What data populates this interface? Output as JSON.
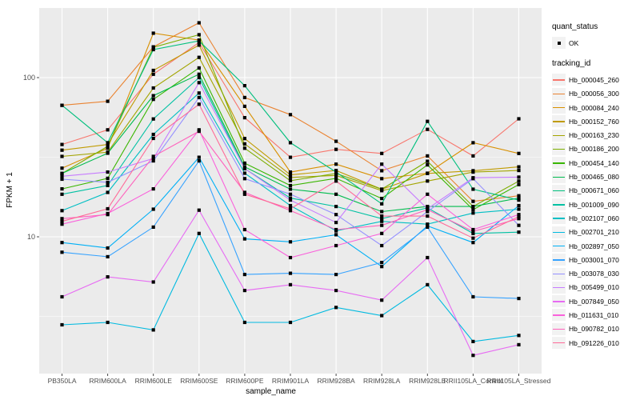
{
  "chart_data": {
    "type": "line",
    "title": "",
    "xlabel": "sample_name",
    "ylabel": "FPKM + 1",
    "y_scale": "log10",
    "ylim": [
      1.4,
      270
    ],
    "y_ticks": [
      10,
      100
    ],
    "y_tick_labels": [
      "10",
      "100"
    ],
    "y_minor_ticks": [
      3.162,
      31.62
    ],
    "grid": "on",
    "panel_background": "#EBEBEB",
    "gridline_color": "#FFFFFF",
    "point_marker": "black-square",
    "legend_position": "right",
    "categories": [
      "PB350LA",
      "RRIM600LA",
      "RRIM600LE",
      "RRIM600SE",
      "RRIM600PE",
      "RRIM901LA",
      "RRIM928BA",
      "RRIM928LA",
      "RRIM928LE",
      "RRII105LA_Control",
      "RRII105LA_Stressed"
    ],
    "series": [
      {
        "name": "Hb_000045_260",
        "color": "#F8766D",
        "values": [
          38,
          47,
          105,
          166,
          56,
          31.6,
          35.4,
          33.4,
          47.3,
          32.2,
          55.1
        ]
      },
      {
        "name": "Hb_000056_300",
        "color": "#EA8331",
        "values": [
          67,
          71,
          156,
          221,
          75,
          58.5,
          39.8,
          26,
          32.2,
          16.7,
          18.1
        ]
      },
      {
        "name": "Hb_000084_240",
        "color": "#D89000",
        "values": [
          27,
          36,
          190,
          172,
          66,
          25.5,
          28.6,
          23.2,
          25.1,
          39,
          33.4
        ]
      },
      {
        "name": "Hb_000152_760",
        "color": "#C09B00",
        "values": [
          35,
          38,
          111,
          160,
          41.4,
          24.5,
          26.1,
          19.9,
          25,
          26,
          27.5
        ]
      },
      {
        "name": "Hb_000163_230",
        "color": "#A3A500",
        "values": [
          32,
          34,
          86,
          134,
          38.3,
          23.6,
          24.3,
          19.5,
          22.4,
          25.5,
          26.1
        ]
      },
      {
        "name": "Hb_000186_200",
        "color": "#7CAE00",
        "values": [
          25,
          37,
          155,
          186,
          36,
          22.5,
          25,
          19.9,
          29.8,
          15.5,
          22.4
        ]
      },
      {
        "name": "Hb_000454_140",
        "color": "#39B600",
        "values": [
          20,
          23.3,
          73,
          115,
          29,
          21,
          23.3,
          17.4,
          28.3,
          14.8,
          21.3
        ]
      },
      {
        "name": "Hb_000465_080",
        "color": "#00BB4E",
        "values": [
          25,
          33.5,
          77,
          105,
          27.5,
          19.9,
          18.5,
          14.4,
          15.5,
          15.5,
          17.5
        ]
      },
      {
        "name": "Hb_000671_060",
        "color": "#00BF7D",
        "values": [
          67,
          39,
          150,
          170,
          89,
          39,
          25.5,
          16.1,
          53.1,
          19.9,
          17
        ]
      },
      {
        "name": "Hb_001009_090",
        "color": "#00C1A3",
        "values": [
          18.5,
          21,
          55,
          100,
          26.8,
          17.5,
          15.5,
          13,
          15.2,
          10.5,
          10.7
        ]
      },
      {
        "name": "Hb_002107_060",
        "color": "#00BFC4",
        "values": [
          14.6,
          19,
          44,
          80,
          25.1,
          15.7,
          10.9,
          12.5,
          12,
          14.1,
          14.9
        ]
      },
      {
        "name": "Hb_002701_210",
        "color": "#00BAE0",
        "values": [
          2.8,
          2.9,
          2.6,
          10.5,
          2.9,
          2.9,
          3.6,
          3.2,
          5,
          2.2,
          2.4
        ]
      },
      {
        "name": "Hb_002897_050",
        "color": "#00B0F6",
        "values": [
          9.2,
          8.5,
          14.9,
          31.6,
          9.7,
          9.3,
          10.3,
          6.5,
          11.7,
          9.2,
          15.7
        ]
      },
      {
        "name": "Hb_003001_070",
        "color": "#35A2FF",
        "values": [
          8,
          7.5,
          11.5,
          30,
          5.8,
          5.9,
          5.8,
          6.9,
          11.5,
          4.2,
          4.1
        ]
      },
      {
        "name": "Hb_003078_030",
        "color": "#9590FF",
        "values": [
          23,
          22,
          30,
          75,
          23.2,
          18.5,
          13.8,
          8.8,
          14.4,
          23.2,
          11.8
        ]
      },
      {
        "name": "Hb_005499_010",
        "color": "#C77CFF",
        "values": [
          24,
          25.5,
          31,
          93,
          26.8,
          17,
          12.3,
          28.6,
          15,
          23.5,
          23.7
        ]
      },
      {
        "name": "Hb_007849_050",
        "color": "#E76BF3",
        "values": [
          4.2,
          5.6,
          5.2,
          14.7,
          4.6,
          5,
          4.6,
          4,
          7.4,
          1.8,
          2.1
        ]
      },
      {
        "name": "Hb_011631_010",
        "color": "#FA62DB",
        "values": [
          12,
          14,
          20,
          47,
          11.1,
          7.4,
          8.8,
          10.5,
          18.5,
          11.1,
          13.8
        ]
      },
      {
        "name": "Hb_090782_010",
        "color": "#FF62BC",
        "values": [
          13,
          13.8,
          32,
          46,
          19,
          14.6,
          11.1,
          11.8,
          14.8,
          10.8,
          13
        ]
      },
      {
        "name": "Hb_091226_010",
        "color": "#FF6A98",
        "values": [
          12.5,
          15,
          41.5,
          68,
          18.5,
          15,
          22.4,
          13.5,
          13.5,
          9.8,
          13.4
        ]
      }
    ],
    "legend": {
      "quant_status_title": "quant_status",
      "quant_status_items": [
        {
          "label": "OK",
          "marker": "black-square"
        }
      ],
      "tracking_id_title": "tracking_id"
    }
  }
}
